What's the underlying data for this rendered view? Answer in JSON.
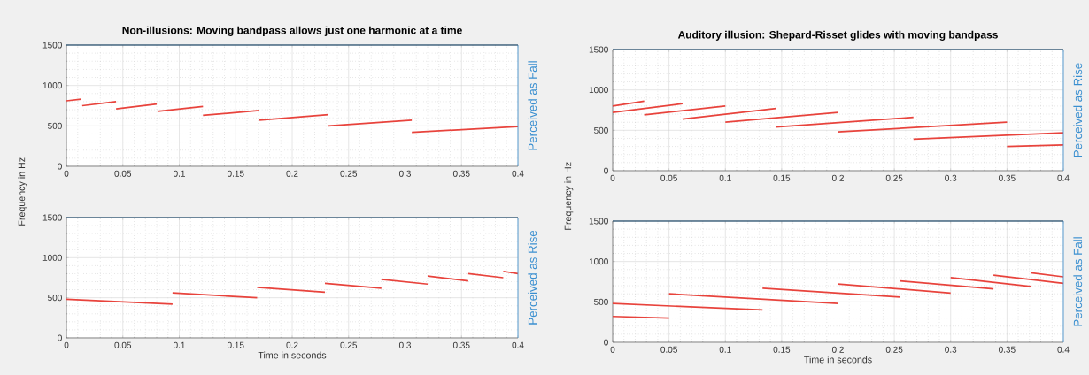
{
  "chart_data": [
    {
      "type": "line",
      "title": "Non-illusions: Moving bandpass allows just one harmonic at a time",
      "ylabel": "Frequency in Hz",
      "y2label": "Perceived as Fall",
      "xlim": [
        0,
        0.4
      ],
      "xticks": [
        0,
        0.05,
        0.1,
        0.15,
        0.2,
        0.25,
        0.3,
        0.35,
        0.4
      ],
      "ylim": [
        0,
        1500
      ],
      "yticks": [
        0,
        500,
        1000,
        1500
      ],
      "grid": true,
      "marker": "none",
      "line_style": "solid",
      "series": [
        {
          "color": "#e8433c",
          "x": [
            0,
            0.013
          ],
          "values": [
            810,
            830
          ]
        },
        {
          "color": "#e8433c",
          "x": [
            0.014,
            0.044
          ],
          "values": [
            750,
            800
          ]
        },
        {
          "color": "#e8433c",
          "x": [
            0.044,
            0.08
          ],
          "values": [
            710,
            770
          ]
        },
        {
          "color": "#e8433c",
          "x": [
            0.081,
            0.121
          ],
          "values": [
            680,
            740
          ]
        },
        {
          "color": "#e8433c",
          "x": [
            0.121,
            0.171
          ],
          "values": [
            630,
            690
          ]
        },
        {
          "color": "#e8433c",
          "x": [
            0.171,
            0.232
          ],
          "values": [
            570,
            640
          ]
        },
        {
          "color": "#e8433c",
          "x": [
            0.232,
            0.306
          ],
          "values": [
            500,
            570
          ]
        },
        {
          "color": "#e8433c",
          "x": [
            0.306,
            0.4
          ],
          "values": [
            420,
            490
          ]
        }
      ]
    },
    {
      "type": "line",
      "xlabel": "Time in seconds",
      "y2label": "Perceived as Rise",
      "xlim": [
        0,
        0.4
      ],
      "xticks": [
        0,
        0.05,
        0.1,
        0.15,
        0.2,
        0.25,
        0.3,
        0.35,
        0.4
      ],
      "ylim": [
        0,
        1500
      ],
      "yticks": [
        0,
        500,
        1000,
        1500
      ],
      "grid": true,
      "marker": "none",
      "line_style": "solid",
      "series": [
        {
          "color": "#e8433c",
          "x": [
            0,
            0.094
          ],
          "values": [
            480,
            420
          ]
        },
        {
          "color": "#e8433c",
          "x": [
            0.094,
            0.169
          ],
          "values": [
            560,
            500
          ]
        },
        {
          "color": "#e8433c",
          "x": [
            0.169,
            0.229
          ],
          "values": [
            630,
            570
          ]
        },
        {
          "color": "#e8433c",
          "x": [
            0.229,
            0.279
          ],
          "values": [
            680,
            620
          ]
        },
        {
          "color": "#e8433c",
          "x": [
            0.279,
            0.32
          ],
          "values": [
            730,
            670
          ]
        },
        {
          "color": "#e8433c",
          "x": [
            0.32,
            0.356
          ],
          "values": [
            770,
            710
          ]
        },
        {
          "color": "#e8433c",
          "x": [
            0.356,
            0.387
          ],
          "values": [
            800,
            750
          ]
        },
        {
          "color": "#e8433c",
          "x": [
            0.387,
            0.4
          ],
          "values": [
            830,
            800
          ]
        }
      ]
    },
    {
      "type": "line",
      "title": "Auditory illusion: Shepard-Risset glides with moving bandpass",
      "ylabel": "Frequency in Hz",
      "y2label": "Perceived as Rise",
      "xlim": [
        0,
        0.4
      ],
      "xticks": [
        0,
        0.05,
        0.1,
        0.15,
        0.2,
        0.25,
        0.3,
        0.35,
        0.4
      ],
      "ylim": [
        0,
        1500
      ],
      "yticks": [
        0,
        500,
        1000,
        1500
      ],
      "grid": true,
      "marker": "none",
      "line_style": "solid",
      "series": [
        {
          "color": "#e8433c",
          "x": [
            0,
            0.028
          ],
          "values": [
            800,
            860
          ]
        },
        {
          "color": "#e8433c",
          "x": [
            0,
            0.062
          ],
          "values": [
            720,
            830
          ]
        },
        {
          "color": "#e8433c",
          "x": [
            0.028,
            0.1
          ],
          "values": [
            690,
            800
          ]
        },
        {
          "color": "#e8433c",
          "x": [
            0.062,
            0.145
          ],
          "values": [
            640,
            770
          ]
        },
        {
          "color": "#e8433c",
          "x": [
            0.1,
            0.2
          ],
          "values": [
            600,
            720
          ]
        },
        {
          "color": "#e8433c",
          "x": [
            0.145,
            0.267
          ],
          "values": [
            540,
            660
          ]
        },
        {
          "color": "#e8433c",
          "x": [
            0.2,
            0.35
          ],
          "values": [
            480,
            600
          ]
        },
        {
          "color": "#e8433c",
          "x": [
            0.267,
            0.4
          ],
          "values": [
            390,
            470
          ]
        },
        {
          "color": "#e8433c",
          "x": [
            0.35,
            0.4
          ],
          "values": [
            300,
            320
          ]
        }
      ]
    },
    {
      "type": "line",
      "xlabel": "Time in seconds",
      "y2label": "Perceived as Fall",
      "xlim": [
        0,
        0.4
      ],
      "xticks": [
        0,
        0.05,
        0.1,
        0.15,
        0.2,
        0.25,
        0.3,
        0.35,
        0.4
      ],
      "ylim": [
        0,
        1500
      ],
      "yticks": [
        0,
        500,
        1000,
        1500
      ],
      "grid": true,
      "marker": "none",
      "line_style": "solid",
      "series": [
        {
          "color": "#e8433c",
          "x": [
            0,
            0.05
          ],
          "values": [
            320,
            300
          ]
        },
        {
          "color": "#e8433c",
          "x": [
            0,
            0.133
          ],
          "values": [
            480,
            400
          ]
        },
        {
          "color": "#e8433c",
          "x": [
            0.05,
            0.2
          ],
          "values": [
            600,
            480
          ]
        },
        {
          "color": "#e8433c",
          "x": [
            0.133,
            0.255
          ],
          "values": [
            670,
            560
          ]
        },
        {
          "color": "#e8433c",
          "x": [
            0.2,
            0.3
          ],
          "values": [
            720,
            610
          ]
        },
        {
          "color": "#e8433c",
          "x": [
            0.255,
            0.338
          ],
          "values": [
            760,
            660
          ]
        },
        {
          "color": "#e8433c",
          "x": [
            0.3,
            0.371
          ],
          "values": [
            800,
            690
          ]
        },
        {
          "color": "#e8433c",
          "x": [
            0.338,
            0.4
          ],
          "values": [
            830,
            730
          ]
        },
        {
          "color": "#e8433c",
          "x": [
            0.371,
            0.4
          ],
          "values": [
            860,
            810
          ]
        }
      ]
    }
  ]
}
